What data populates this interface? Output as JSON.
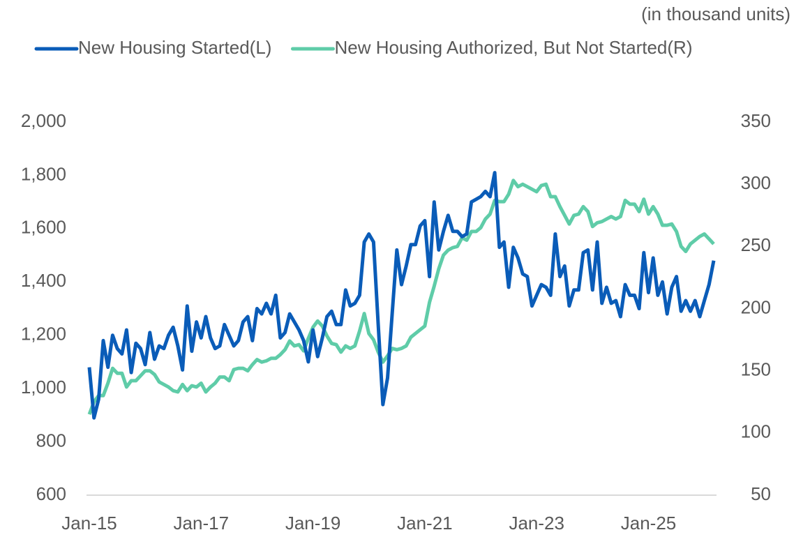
{
  "chart_data": {
    "type": "line",
    "subtitle": "(in thousand units)",
    "categories": [
      "Jan-15",
      null,
      null,
      null,
      null,
      null,
      null,
      null,
      null,
      null,
      null,
      null,
      null,
      null,
      null,
      null,
      null,
      null,
      null,
      null,
      null,
      null,
      null,
      null,
      "Jan-17",
      null,
      null,
      null,
      null,
      null,
      null,
      null,
      null,
      null,
      null,
      null,
      null,
      null,
      null,
      null,
      null,
      null,
      null,
      null,
      null,
      null,
      null,
      null,
      "Jan-19",
      null,
      null,
      null,
      null,
      null,
      null,
      null,
      null,
      null,
      null,
      null,
      null,
      null,
      null,
      null,
      null,
      null,
      null,
      null,
      null,
      null,
      null,
      null,
      "Jan-21",
      null,
      null,
      null,
      null,
      null,
      null,
      null,
      null,
      null,
      null,
      null,
      null,
      null,
      null,
      null,
      null,
      null,
      null,
      null,
      null,
      null,
      null,
      null,
      "Jan-23",
      null,
      null,
      null,
      null,
      null,
      null,
      null,
      null,
      null,
      null,
      null,
      null,
      null,
      null,
      null,
      null,
      null,
      null,
      null,
      null,
      null,
      null,
      null,
      "Jan-25",
      null,
      null,
      null,
      null,
      null,
      null,
      null,
      null,
      null,
      null,
      null,
      null,
      null,
      null
    ],
    "series": [
      {
        "name": "New Housing Started(L)",
        "color": "#0a5cb8",
        "axis": "y",
        "values": [
          1080,
          890,
          960,
          1180,
          1080,
          1200,
          1150,
          1130,
          1220,
          1060,
          1170,
          1150,
          1090,
          1210,
          1110,
          1160,
          1150,
          1200,
          1230,
          1160,
          1070,
          1310,
          1140,
          1250,
          1190,
          1270,
          1190,
          1150,
          1160,
          1240,
          1200,
          1160,
          1180,
          1250,
          1270,
          1180,
          1300,
          1280,
          1320,
          1280,
          1350,
          1190,
          1210,
          1280,
          1250,
          1220,
          1180,
          1100,
          1220,
          1120,
          1190,
          1270,
          1290,
          1240,
          1240,
          1370,
          1310,
          1320,
          1350,
          1550,
          1580,
          1550,
          1240,
          940,
          1040,
          1280,
          1520,
          1390,
          1460,
          1540,
          1540,
          1610,
          1630,
          1420,
          1700,
          1520,
          1590,
          1650,
          1590,
          1590,
          1570,
          1580,
          1700,
          1710,
          1720,
          1740,
          1720,
          1810,
          1530,
          1550,
          1380,
          1530,
          1490,
          1430,
          1420,
          1310,
          1350,
          1390,
          1380,
          1350,
          1580,
          1420,
          1460,
          1310,
          1370,
          1370,
          1510,
          1520,
          1370,
          1550,
          1320,
          1380,
          1320,
          1330,
          1270,
          1390,
          1350,
          1350,
          1300,
          1510,
          1360,
          1490,
          1350,
          1400,
          1280,
          1380,
          1420,
          1290,
          1330,
          1290,
          1330,
          1270,
          1330,
          1390,
          1480
        ]
      },
      {
        "name": "New Housing Authorized, But Not Started(R)",
        "color": "#5fcca8",
        "axis": "y2",
        "values": [
          115,
          125,
          130,
          130,
          140,
          152,
          148,
          148,
          137,
          142,
          142,
          146,
          150,
          150,
          147,
          141,
          139,
          137,
          134,
          133,
          139,
          134,
          138,
          137,
          140,
          133,
          137,
          140,
          145,
          145,
          142,
          151,
          152,
          152,
          150,
          155,
          159,
          157,
          158,
          160,
          160,
          163,
          167,
          174,
          170,
          171,
          166,
          176,
          185,
          190,
          186,
          178,
          172,
          171,
          165,
          170,
          168,
          170,
          182,
          196,
          180,
          175,
          165,
          157,
          162,
          168,
          167,
          168,
          170,
          177,
          180,
          183,
          186,
          205,
          218,
          232,
          243,
          247,
          249,
          250,
          257,
          255,
          262,
          262,
          265,
          272,
          276,
          287,
          286,
          286,
          292,
          303,
          298,
          300,
          298,
          296,
          294,
          299,
          300,
          290,
          290,
          282,
          275,
          268,
          275,
          276,
          282,
          278,
          266,
          269,
          270,
          272,
          274,
          272,
          274,
          287,
          284,
          284,
          278,
          288,
          276,
          282,
          276,
          267,
          267,
          268,
          262,
          250,
          246,
          252,
          255,
          258,
          260,
          256,
          252
        ]
      }
    ],
    "ylim": [
      600,
      2000
    ],
    "yticks": [
      {
        "value": 600,
        "label": "600"
      },
      {
        "value": 800,
        "label": "800"
      },
      {
        "value": 1000,
        "label": "1,000"
      },
      {
        "value": 1200,
        "label": "1,200"
      },
      {
        "value": 1400,
        "label": "1,400"
      },
      {
        "value": 1600,
        "label": "1,600"
      },
      {
        "value": 1800,
        "label": "1,800"
      },
      {
        "value": 2000,
        "label": "2,000"
      }
    ],
    "y2lim": [
      50,
      350
    ],
    "y2ticks": [
      50,
      100,
      150,
      200,
      250,
      300,
      350
    ],
    "grid": false
  }
}
